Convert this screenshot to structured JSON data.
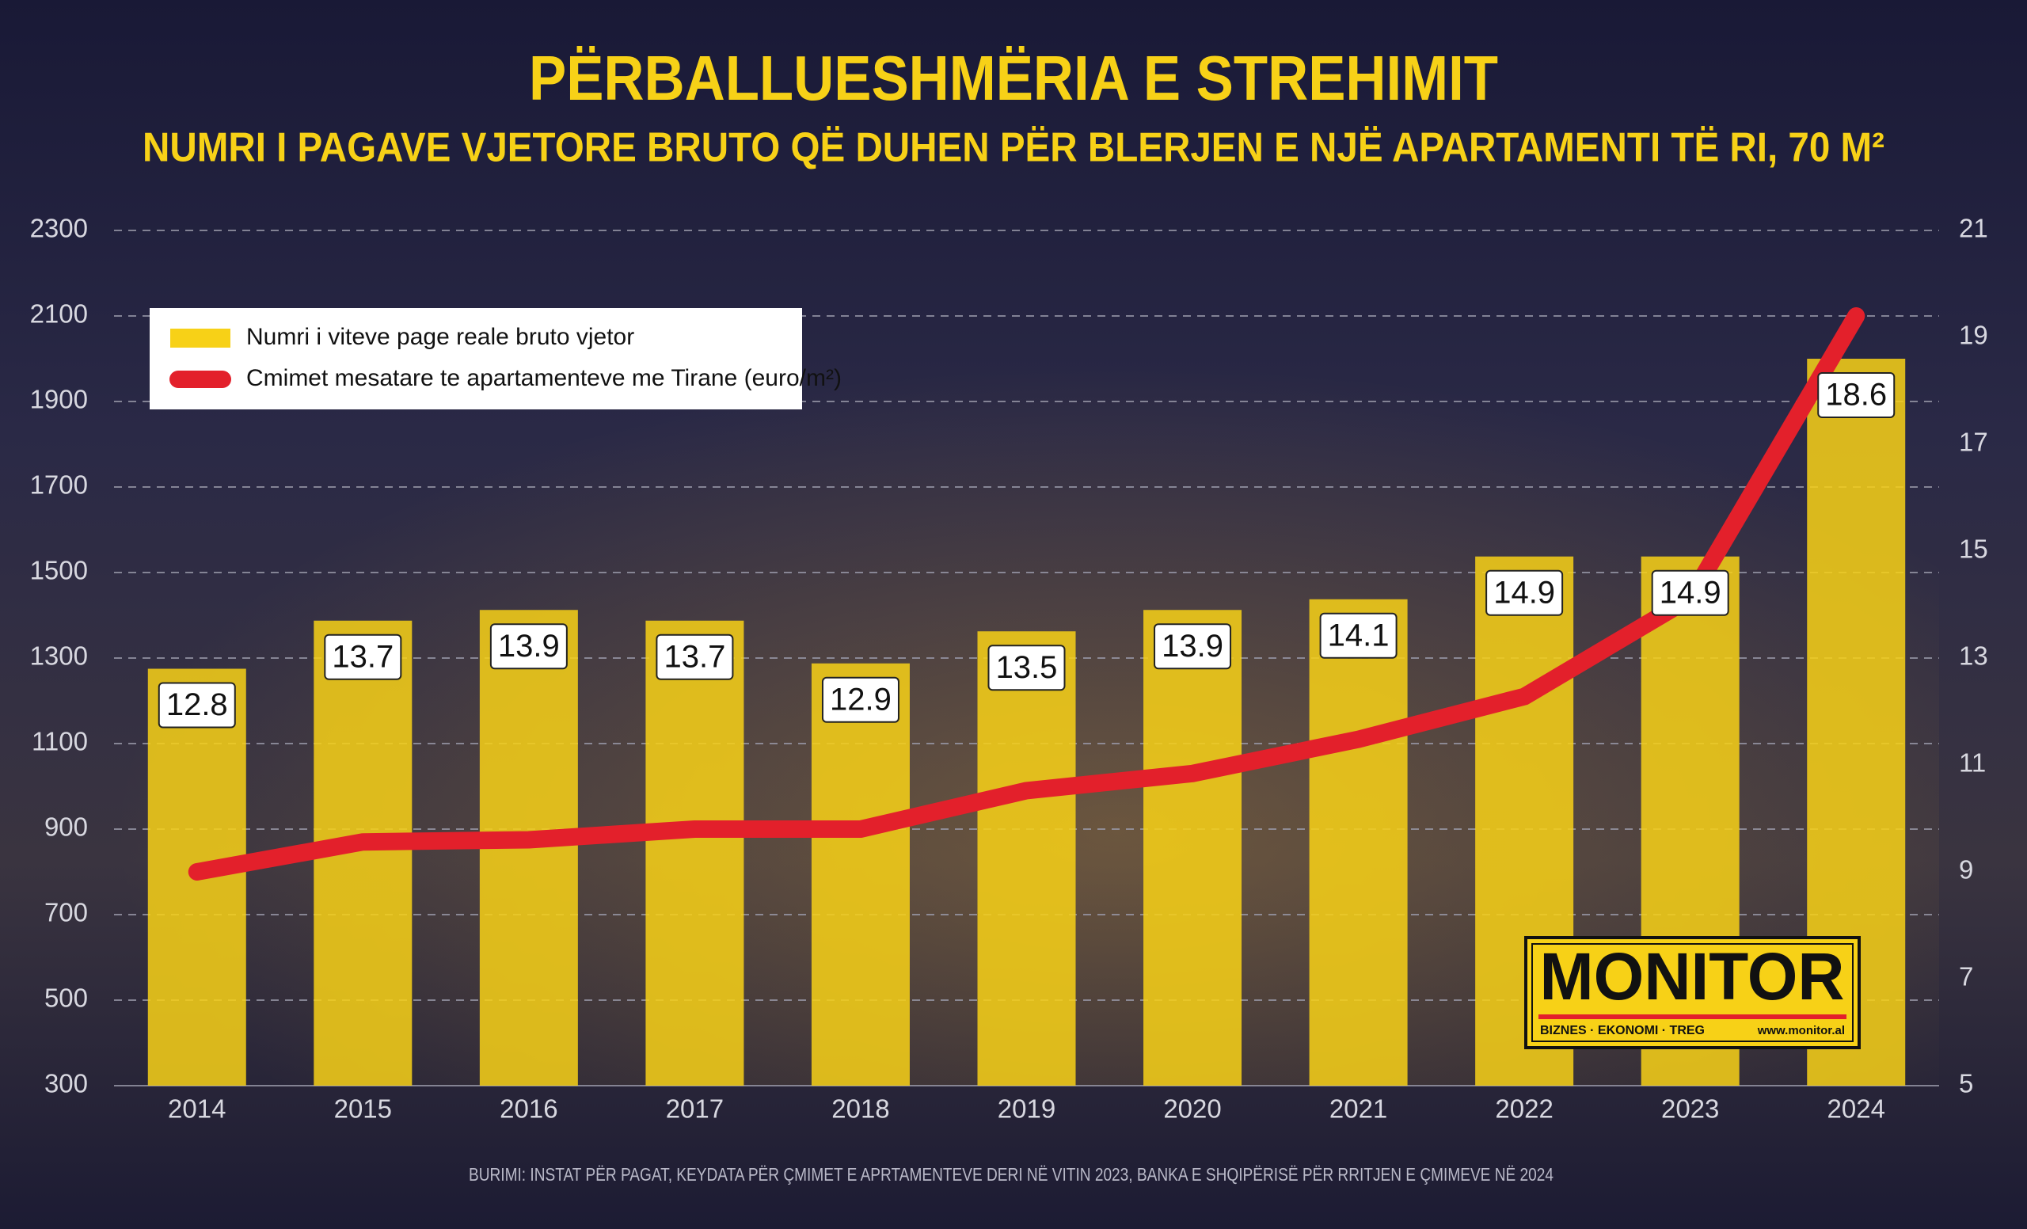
{
  "chart_data": {
    "type": "bar",
    "title": "PËRBALLUESHMËRIA E STREHIMIT",
    "subtitle": "NUMRI I PAGAVE VJETORE BRUTO QË DUHEN PËR BLERJEN E NJË APARTAMENTI TË RI, 70 M²",
    "categories": [
      "2014",
      "2015",
      "2016",
      "2017",
      "2018",
      "2019",
      "2020",
      "2021",
      "2022",
      "2023",
      "2024"
    ],
    "series": [
      {
        "name": "Numri i viteve page reale bruto vjetor",
        "type": "bar",
        "axis": "y2",
        "color": "#f7d117",
        "values": [
          12.8,
          13.7,
          13.9,
          13.7,
          12.9,
          13.5,
          13.9,
          14.1,
          14.9,
          14.9,
          18.6
        ]
      },
      {
        "name": "Cmimet mesatare te apartamenteve me Tirane (euro/m²)",
        "type": "line",
        "color": "#e3202b",
        "values": [
          800,
          870,
          875,
          900,
          900,
          990,
          1030,
          1110,
          1210,
          1440,
          2100
        ]
      }
    ],
    "ylim": [
      300,
      2300
    ],
    "yticks": [
      300,
      500,
      700,
      900,
      1100,
      1300,
      1500,
      1700,
      1900,
      2100,
      2300
    ],
    "y2lim": [
      5,
      21
    ],
    "y2ticks": [
      5,
      7,
      9,
      11,
      13,
      15,
      17,
      19,
      21
    ],
    "grid": true,
    "legend": "upper left",
    "source": "BURIMI: INSTAT PËR PAGAT, KEYDATA PËR ÇMIMET E APRTAMENTEVE DERI NË VITIN 2023, BANKA E SHQIPËRISË PËR RRITJEN E ÇMIMEVE NË 2024",
    "logo": {
      "name": "MONITOR",
      "tagline": "BIZNES · EKONOMI · TREG",
      "url": "www.monitor.al"
    }
  }
}
